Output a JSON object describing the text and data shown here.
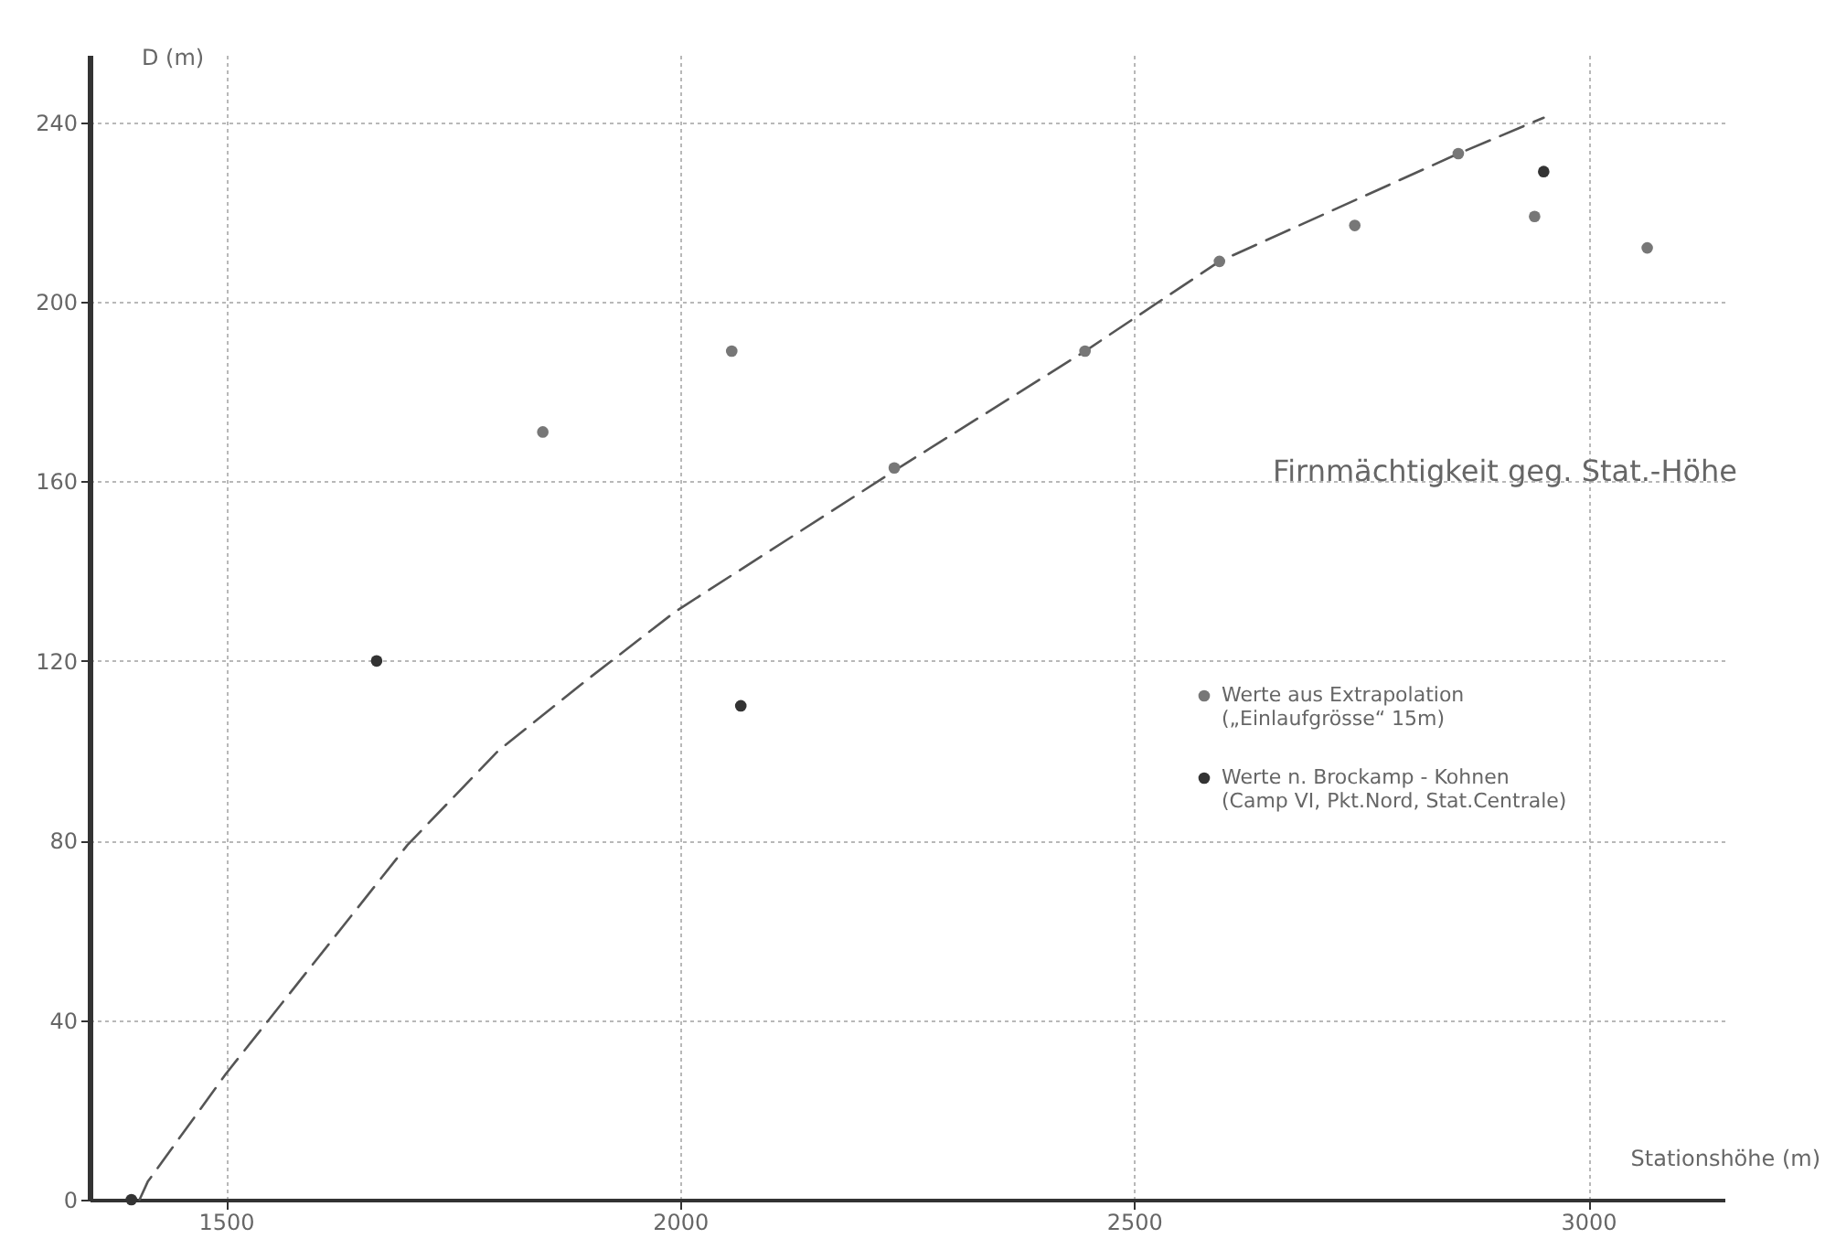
{
  "chart_data": {
    "type": "scatter",
    "title": "Firnmächtigkeit geg. Stat.-Höhe",
    "xlabel": "Stationshöhe (m)",
    "ylabel": "D (m)",
    "xlim": [
      1350,
      3150
    ],
    "xticks": [
      1500,
      2000,
      2500,
      3000
    ],
    "ylim": [
      0,
      255
    ],
    "yticks": [
      0,
      40,
      80,
      120,
      160,
      200,
      240
    ],
    "grid": true,
    "legend": "right",
    "marker": "circle",
    "series": [
      {
        "type": "line",
        "line_style": "dashed",
        "marker": "none",
        "color": "#555555",
        "x": [
          1405,
          1414,
          1500,
          1700,
          1800,
          1899,
          1995,
          2241,
          2446,
          2594,
          2857,
          2951
        ],
        "values": [
          0,
          4,
          28,
          79,
          100,
          116,
          131,
          163,
          189,
          209,
          233,
          241
        ]
      },
      {
        "name": "Werte aus Extrapolation („Einlaufgrösse“ 15m)",
        "color": "#777777",
        "x": [
          1849,
          2057,
          2236,
          2446,
          2594,
          2743,
          2857,
          2941,
          3065
        ],
        "values": [
          171,
          189,
          163,
          189,
          209,
          217,
          233,
          219,
          212
        ]
      },
      {
        "name": "Werte n. Brockamp - Kohnen (Camp VI, Pkt.Nord, Stat.Centrale)",
        "color": "#333333",
        "x": [
          1396,
          1666,
          2067,
          2951
        ],
        "values": [
          0,
          120,
          110,
          229
        ]
      }
    ]
  }
}
